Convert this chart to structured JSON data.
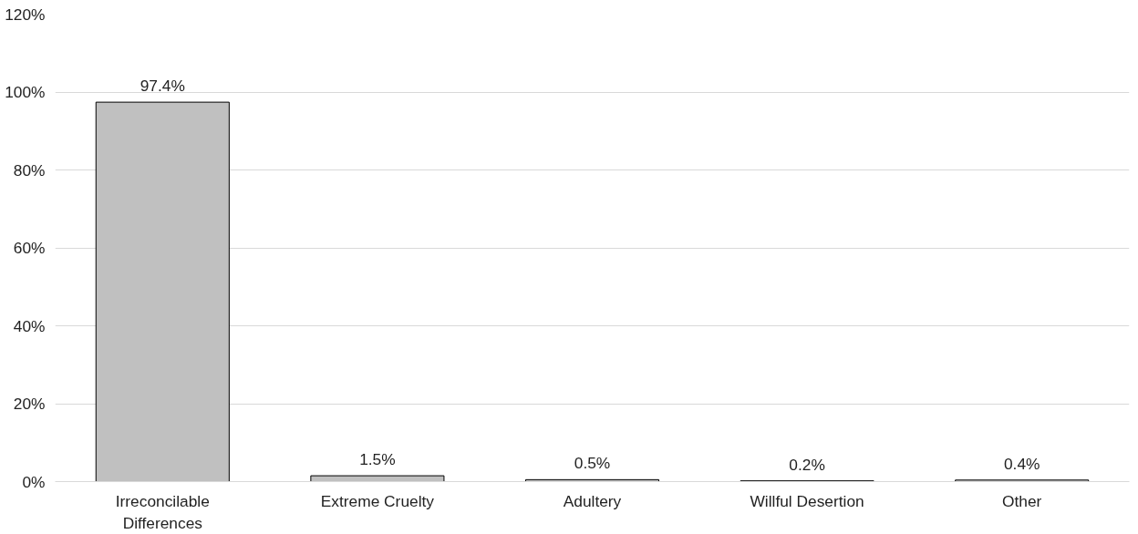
{
  "chart_data": {
    "type": "bar",
    "categories": [
      "Irreconcilable Differences",
      "Extreme Cruelty",
      "Adultery",
      "Willful Desertion",
      "Other"
    ],
    "values": [
      97.4,
      1.5,
      0.5,
      0.2,
      0.4
    ],
    "color": "#c0c0c0",
    "value_labels": [
      "97.4%",
      "1.5%",
      "0.5%",
      "0.2%",
      "0.4%"
    ],
    "ylim": [
      0,
      120
    ],
    "yticks": [
      {
        "value": 0,
        "label": "0%"
      },
      {
        "value": 20,
        "label": "20%"
      },
      {
        "value": 40,
        "label": "40%"
      },
      {
        "value": 60,
        "label": "60%"
      },
      {
        "value": 80,
        "label": "80%"
      },
      {
        "value": 100,
        "label": "100%"
      },
      {
        "value": 120,
        "label": "120%"
      }
    ],
    "grid": "y"
  }
}
